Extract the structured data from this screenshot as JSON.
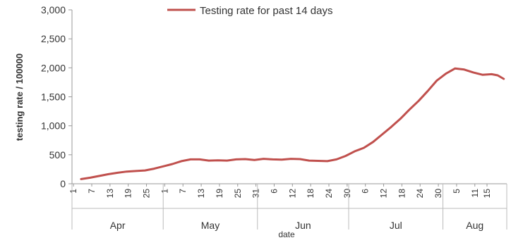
{
  "chart_data": {
    "type": "line",
    "title": "",
    "xlabel": "date",
    "ylabel": "testing rate / 100000",
    "ylim": [
      0,
      3000
    ],
    "yticks": [
      0,
      500,
      1000,
      1500,
      2000,
      2500,
      3000
    ],
    "ytick_labels": [
      "0",
      "500",
      "1,000",
      "1,500",
      "2,000",
      "2,500",
      "3,000"
    ],
    "grid": false,
    "legend_position": "top",
    "series_color": "#c0504d",
    "series": [
      {
        "name": "Testing rate for past 14 days",
        "points": [
          [
            "2020-04-04",
            80
          ],
          [
            "2020-04-07",
            105
          ],
          [
            "2020-04-10",
            135
          ],
          [
            "2020-04-13",
            165
          ],
          [
            "2020-04-16",
            190
          ],
          [
            "2020-04-19",
            210
          ],
          [
            "2020-04-22",
            220
          ],
          [
            "2020-04-25",
            230
          ],
          [
            "2020-04-28",
            260
          ],
          [
            "2020-05-01",
            300
          ],
          [
            "2020-05-04",
            340
          ],
          [
            "2020-05-07",
            390
          ],
          [
            "2020-05-10",
            420
          ],
          [
            "2020-05-13",
            420
          ],
          [
            "2020-05-16",
            400
          ],
          [
            "2020-05-19",
            405
          ],
          [
            "2020-05-22",
            400
          ],
          [
            "2020-05-25",
            420
          ],
          [
            "2020-05-28",
            425
          ],
          [
            "2020-05-31",
            410
          ],
          [
            "2020-06-03",
            430
          ],
          [
            "2020-06-06",
            420
          ],
          [
            "2020-06-09",
            415
          ],
          [
            "2020-06-12",
            430
          ],
          [
            "2020-06-15",
            425
          ],
          [
            "2020-06-18",
            400
          ],
          [
            "2020-06-21",
            395
          ],
          [
            "2020-06-24",
            390
          ],
          [
            "2020-06-27",
            420
          ],
          [
            "2020-06-30",
            480
          ],
          [
            "2020-07-03",
            560
          ],
          [
            "2020-07-06",
            620
          ],
          [
            "2020-07-09",
            720
          ],
          [
            "2020-07-12",
            850
          ],
          [
            "2020-07-15",
            980
          ],
          [
            "2020-07-18",
            1120
          ],
          [
            "2020-07-21",
            1280
          ],
          [
            "2020-07-24",
            1430
          ],
          [
            "2020-07-27",
            1600
          ],
          [
            "2020-07-30",
            1780
          ],
          [
            "2020-08-02",
            1900
          ],
          [
            "2020-08-05",
            1990
          ],
          [
            "2020-08-08",
            1970
          ],
          [
            "2020-08-11",
            1920
          ],
          [
            "2020-08-14",
            1880
          ],
          [
            "2020-08-17",
            1890
          ],
          [
            "2020-08-19",
            1870
          ],
          [
            "2020-08-21",
            1810
          ]
        ]
      }
    ],
    "x_tick_labels": [
      {
        "date": "2020-04-01",
        "label": "1"
      },
      {
        "date": "2020-04-07",
        "label": "7"
      },
      {
        "date": "2020-04-13",
        "label": "13"
      },
      {
        "date": "2020-04-19",
        "label": "19"
      },
      {
        "date": "2020-04-25",
        "label": "25"
      },
      {
        "date": "2020-05-01",
        "label": "1"
      },
      {
        "date": "2020-05-07",
        "label": "7"
      },
      {
        "date": "2020-05-13",
        "label": "13"
      },
      {
        "date": "2020-05-19",
        "label": "19"
      },
      {
        "date": "2020-05-25",
        "label": "25"
      },
      {
        "date": "2020-05-31",
        "label": "31"
      },
      {
        "date": "2020-06-06",
        "label": "6"
      },
      {
        "date": "2020-06-12",
        "label": "12"
      },
      {
        "date": "2020-06-18",
        "label": "18"
      },
      {
        "date": "2020-06-24",
        "label": "24"
      },
      {
        "date": "2020-06-30",
        "label": "30"
      },
      {
        "date": "2020-07-06",
        "label": "6"
      },
      {
        "date": "2020-07-12",
        "label": "12"
      },
      {
        "date": "2020-07-18",
        "label": "18"
      },
      {
        "date": "2020-07-24",
        "label": "24"
      },
      {
        "date": "2020-07-30",
        "label": "30"
      },
      {
        "date": "2020-08-05",
        "label": "5"
      },
      {
        "date": "2020-08-11",
        "label": "11"
      },
      {
        "date": "2020-08-15",
        "label": "15"
      }
    ],
    "months": [
      {
        "label": "Apr",
        "start": "2020-04-01",
        "end": "2020-05-01"
      },
      {
        "label": "May",
        "start": "2020-05-01",
        "end": "2020-06-01"
      },
      {
        "label": "Jun",
        "start": "2020-06-01",
        "end": "2020-07-01"
      },
      {
        "label": "Jul",
        "start": "2020-07-01",
        "end": "2020-08-01"
      },
      {
        "label": "Aug",
        "start": "2020-08-01",
        "end": "2020-08-22"
      }
    ],
    "x_range": [
      "2020-04-01",
      "2020-08-22"
    ]
  }
}
